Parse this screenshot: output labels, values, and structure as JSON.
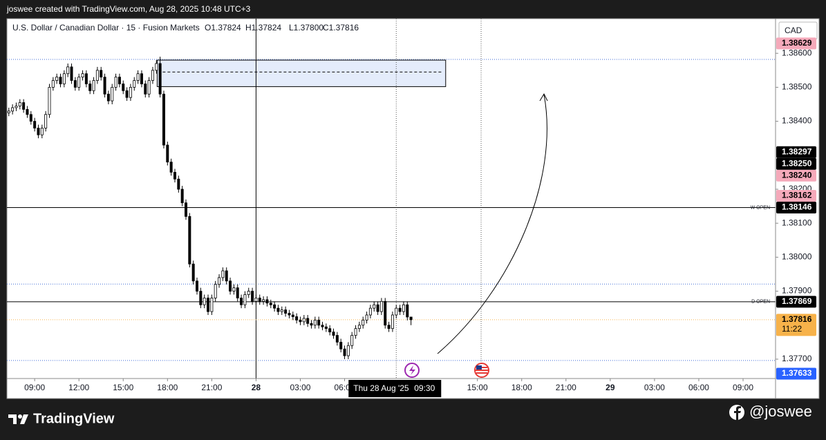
{
  "header": {
    "text": "joswee created with TradingView.com, Aug 28, 2025 10:48 UTC+3"
  },
  "footer": {
    "brand": "TradingView",
    "handle": "@joswee"
  },
  "chart_data": {
    "type": "candlestick",
    "symbol": "U.S. Dollar / Canadian Dollar · 15 · Fusion Markets",
    "ohlc_legend": [
      "O1.37824",
      "H1.37824",
      "L1.37800",
      "C1.37816"
    ],
    "currency": "CAD",
    "up_color": "#ffffff",
    "down_color": "#000000",
    "wick_color": "#000000",
    "grid": false,
    "xlim": [
      7.12,
      59.2
    ],
    "ylim": [
      1.37643,
      1.38702
    ],
    "xticks": [
      {
        "value": 9,
        "label": "09:00"
      },
      {
        "value": 12,
        "label": "12:00"
      },
      {
        "value": 15,
        "label": "15:00"
      },
      {
        "value": 18,
        "label": "18:00"
      },
      {
        "value": 21,
        "label": "21:00"
      },
      {
        "value": 24,
        "label": "28"
      },
      {
        "value": 27,
        "label": "03:00"
      },
      {
        "value": 30,
        "label": "06:00"
      },
      {
        "value": 39,
        "label": "15:00"
      },
      {
        "value": 42,
        "label": "18:00"
      },
      {
        "value": 45,
        "label": "21:00"
      },
      {
        "value": 48,
        "label": "29"
      },
      {
        "value": 51,
        "label": "03:00"
      },
      {
        "value": 54,
        "label": "06:00"
      },
      {
        "value": 57,
        "label": "09:00"
      }
    ],
    "yticks": [
      {
        "value": 1.386,
        "label": "1.38600"
      },
      {
        "value": 1.385,
        "label": "1.38500"
      },
      {
        "value": 1.384,
        "label": "1.38400"
      },
      {
        "value": 1.382,
        "label": "1.38200"
      },
      {
        "value": 1.381,
        "label": "1.38100"
      },
      {
        "value": 1.38,
        "label": "1.38000"
      },
      {
        "value": 1.379,
        "label": "1.37900"
      },
      {
        "value": 1.377,
        "label": "1.37700"
      }
    ],
    "x": [
      7.25,
      7.5,
      7.75,
      8,
      8.25,
      8.5,
      8.75,
      9,
      9.25,
      9.5,
      9.75,
      10,
      10.25,
      10.5,
      10.75,
      11,
      11.25,
      11.5,
      11.75,
      12,
      12.25,
      12.5,
      12.75,
      13,
      13.25,
      13.5,
      13.75,
      14,
      14.25,
      14.5,
      14.75,
      15,
      15.25,
      15.5,
      15.75,
      16,
      16.25,
      16.5,
      16.75,
      17,
      17.25,
      17.5,
      17.75,
      18,
      18.25,
      18.5,
      18.75,
      19,
      19.25,
      19.5,
      19.75,
      20,
      20.25,
      20.5,
      20.75,
      21,
      21.25,
      21.5,
      21.75,
      22,
      22.25,
      22.5,
      22.75,
      23,
      23.25,
      23.5,
      23.75,
      24,
      24.25,
      24.5,
      24.75,
      25,
      25.25,
      25.5,
      25.75,
      26,
      26.25,
      26.5,
      26.75,
      27,
      27.25,
      27.5,
      27.75,
      28,
      28.25,
      28.5,
      28.75,
      29,
      29.25,
      29.5,
      29.75,
      30,
      30.25,
      30.5,
      30.75,
      31,
      31.25,
      31.5,
      31.75,
      32,
      32.25,
      32.5,
      32.75,
      33,
      33.25,
      33.5,
      33.75,
      34,
      34.25,
      34.5
    ],
    "open": [
      1.38425,
      1.3843,
      1.3844,
      1.38445,
      1.38455,
      1.38435,
      1.3842,
      1.384,
      1.3838,
      1.3836,
      1.3838,
      1.3842,
      1.385,
      1.3852,
      1.3853,
      1.3851,
      1.3854,
      1.3856,
      1.3852,
      1.385,
      1.3853,
      1.3854,
      1.3851,
      1.3849,
      1.3852,
      1.3855,
      1.3853,
      1.3848,
      1.3846,
      1.385,
      1.3853,
      1.3851,
      1.3849,
      1.3847,
      1.385,
      1.3852,
      1.3854,
      1.3851,
      1.3848,
      1.3852,
      1.3855,
      1.3857,
      1.3848,
      1.3833,
      1.3828,
      1.3825,
      1.3823,
      1.382,
      1.3816,
      1.3812,
      1.3798,
      1.3793,
      1.379,
      1.3786,
      1.3788,
      1.3784,
      1.3788,
      1.3792,
      1.3794,
      1.3796,
      1.3793,
      1.379,
      1.3791,
      1.3788,
      1.3786,
      1.3789,
      1.379,
      1.3787,
      1.3788,
      1.3787,
      1.37875,
      1.37865,
      1.3786,
      1.3785,
      1.3784,
      1.37845,
      1.37835,
      1.3783,
      1.37825,
      1.37815,
      1.3781,
      1.3782,
      1.37805,
      1.378,
      1.37815,
      1.378,
      1.37795,
      1.3779,
      1.3778,
      1.3777,
      1.3775,
      1.3773,
      1.3771,
      1.3774,
      1.3777,
      1.3779,
      1.378,
      1.37815,
      1.3783,
      1.3785,
      1.3786,
      1.3784,
      1.3787,
      1.378,
      1.3779,
      1.3783,
      1.3785,
      1.3784,
      1.3786,
      1.37824
    ],
    "high": [
      1.3844,
      1.3845,
      1.38455,
      1.38465,
      1.38465,
      1.38445,
      1.3843,
      1.3841,
      1.3839,
      1.3839,
      1.3843,
      1.3851,
      1.3853,
      1.3854,
      1.3854,
      1.3855,
      1.3857,
      1.3857,
      1.3853,
      1.3854,
      1.3855,
      1.3855,
      1.3852,
      1.3853,
      1.3856,
      1.3856,
      1.3854,
      1.3849,
      1.3851,
      1.3854,
      1.3854,
      1.3852,
      1.385,
      1.3851,
      1.3853,
      1.3855,
      1.3855,
      1.3852,
      1.3853,
      1.3856,
      1.3858,
      1.3859,
      1.3849,
      1.3834,
      1.3829,
      1.3826,
      1.3824,
      1.3821,
      1.3817,
      1.3813,
      1.3799,
      1.3794,
      1.3791,
      1.3789,
      1.3789,
      1.3789,
      1.3793,
      1.3795,
      1.3797,
      1.3797,
      1.3794,
      1.3792,
      1.3792,
      1.3789,
      1.379,
      1.3791,
      1.3791,
      1.3789,
      1.3789,
      1.37885,
      1.37885,
      1.37875,
      1.3787,
      1.3786,
      1.37855,
      1.37855,
      1.37845,
      1.3784,
      1.37835,
      1.37825,
      1.3783,
      1.3783,
      1.37815,
      1.37825,
      1.37825,
      1.3781,
      1.37805,
      1.378,
      1.3779,
      1.3778,
      1.3776,
      1.3774,
      1.3775,
      1.3778,
      1.378,
      1.3781,
      1.37825,
      1.3784,
      1.3786,
      1.3787,
      1.3787,
      1.3788,
      1.3788,
      1.3781,
      1.3784,
      1.3786,
      1.3786,
      1.3787,
      1.3787,
      1.37824
    ],
    "low": [
      1.38415,
      1.3842,
      1.3843,
      1.38435,
      1.38425,
      1.3841,
      1.3839,
      1.3837,
      1.3835,
      1.3835,
      1.3837,
      1.3841,
      1.3849,
      1.3851,
      1.385,
      1.385,
      1.3853,
      1.3851,
      1.3849,
      1.3849,
      1.3852,
      1.385,
      1.3848,
      1.3848,
      1.3851,
      1.3852,
      1.3847,
      1.3845,
      1.3845,
      1.3849,
      1.385,
      1.3848,
      1.3846,
      1.3846,
      1.3849,
      1.3851,
      1.385,
      1.3847,
      1.3847,
      1.3851,
      1.3854,
      1.3847,
      1.3832,
      1.3827,
      1.3824,
      1.3822,
      1.3819,
      1.3815,
      1.3811,
      1.3797,
      1.3792,
      1.3789,
      1.3785,
      1.3785,
      1.3783,
      1.3783,
      1.3787,
      1.3791,
      1.3793,
      1.3792,
      1.3789,
      1.3789,
      1.3787,
      1.3785,
      1.3785,
      1.3788,
      1.3786,
      1.3786,
      1.3786,
      1.3786,
      1.37855,
      1.3785,
      1.3784,
      1.3783,
      1.3783,
      1.37825,
      1.3782,
      1.37815,
      1.37805,
      1.378,
      1.378,
      1.37795,
      1.3779,
      1.3779,
      1.3779,
      1.37785,
      1.3778,
      1.3777,
      1.3776,
      1.3774,
      1.3772,
      1.377,
      1.377,
      1.3773,
      1.3776,
      1.3778,
      1.3779,
      1.37805,
      1.3782,
      1.3784,
      1.3783,
      1.3783,
      1.3779,
      1.3778,
      1.3778,
      1.3782,
      1.3783,
      1.3783,
      1.37814,
      1.378
    ],
    "close": [
      1.3843,
      1.3844,
      1.38445,
      1.38455,
      1.38435,
      1.3842,
      1.384,
      1.3838,
      1.3836,
      1.3838,
      1.3842,
      1.385,
      1.3852,
      1.3853,
      1.3851,
      1.3854,
      1.3856,
      1.3852,
      1.385,
      1.3853,
      1.3854,
      1.3851,
      1.3849,
      1.3852,
      1.3855,
      1.3853,
      1.3848,
      1.3846,
      1.385,
      1.3853,
      1.3851,
      1.3849,
      1.3847,
      1.385,
      1.3852,
      1.3854,
      1.3851,
      1.3848,
      1.3852,
      1.3855,
      1.3857,
      1.3848,
      1.3833,
      1.3828,
      1.3825,
      1.3823,
      1.382,
      1.3816,
      1.3812,
      1.3798,
      1.3793,
      1.379,
      1.3786,
      1.3788,
      1.3784,
      1.3788,
      1.3792,
      1.3794,
      1.3796,
      1.3793,
      1.379,
      1.3791,
      1.3788,
      1.3786,
      1.3789,
      1.379,
      1.3787,
      1.3788,
      1.3787,
      1.37875,
      1.37865,
      1.3786,
      1.3785,
      1.3784,
      1.37845,
      1.37835,
      1.3783,
      1.37825,
      1.37815,
      1.3781,
      1.3782,
      1.37805,
      1.378,
      1.37815,
      1.378,
      1.37795,
      1.3779,
      1.3778,
      1.3777,
      1.3775,
      1.3773,
      1.3771,
      1.3774,
      1.3777,
      1.3779,
      1.378,
      1.37815,
      1.3783,
      1.3785,
      1.3786,
      1.3784,
      1.3787,
      1.378,
      1.3779,
      1.3783,
      1.3785,
      1.3784,
      1.3786,
      1.37824,
      1.37816
    ],
    "zone": {
      "top": 1.3858,
      "bottom": 1.38502,
      "mid": 1.38545,
      "x0": 17.3,
      "x1": 36.85,
      "color": "#e4ecfb",
      "border": "#000000"
    },
    "dotted_levels": [
      1.38582,
      1.37921,
      1.37696
    ],
    "dotted_color": "#3d6ad6",
    "session_breaks": [
      24
    ],
    "dotted_times": [
      33.5,
      39.25
    ],
    "crosshair": {
      "x": 33.5,
      "date": "Thu 28 Aug '25",
      "time": "09:30"
    },
    "price_labels": [
      {
        "value": 1.38629,
        "label": "1.38629",
        "color": "#f5a9ba",
        "text_color": "#000000"
      },
      {
        "value": 1.38297,
        "label": "1.38297",
        "color": "#000000",
        "text_color": "#ffffff"
      },
      {
        "value": 1.3825,
        "label": "1.38250",
        "color": "#000000",
        "text_color": "#ffffff"
      },
      {
        "value": 1.3824,
        "label": "1.38240",
        "color": "#f5a9ba",
        "text_color": "#000000"
      },
      {
        "value": 1.38162,
        "label": "1.38162",
        "color": "#f5a9ba",
        "text_color": "#000000"
      },
      {
        "value": 1.38146,
        "label": "1.38146",
        "color": "#000000",
        "text_color": "#ffffff",
        "line": "W OPEN"
      },
      {
        "value": 1.37869,
        "label": "1.37869",
        "color": "#000000",
        "text_color": "#ffffff",
        "line": "D OPEN"
      },
      {
        "value": 1.37816,
        "label": "1.37816",
        "color": "#f7b24a",
        "text_color": "#000000",
        "sub": "11:22",
        "current": true
      },
      {
        "value": 1.37633,
        "label": "1.37633",
        "color": "#2962ff",
        "text_color": "#ffffff"
      }
    ]
  }
}
